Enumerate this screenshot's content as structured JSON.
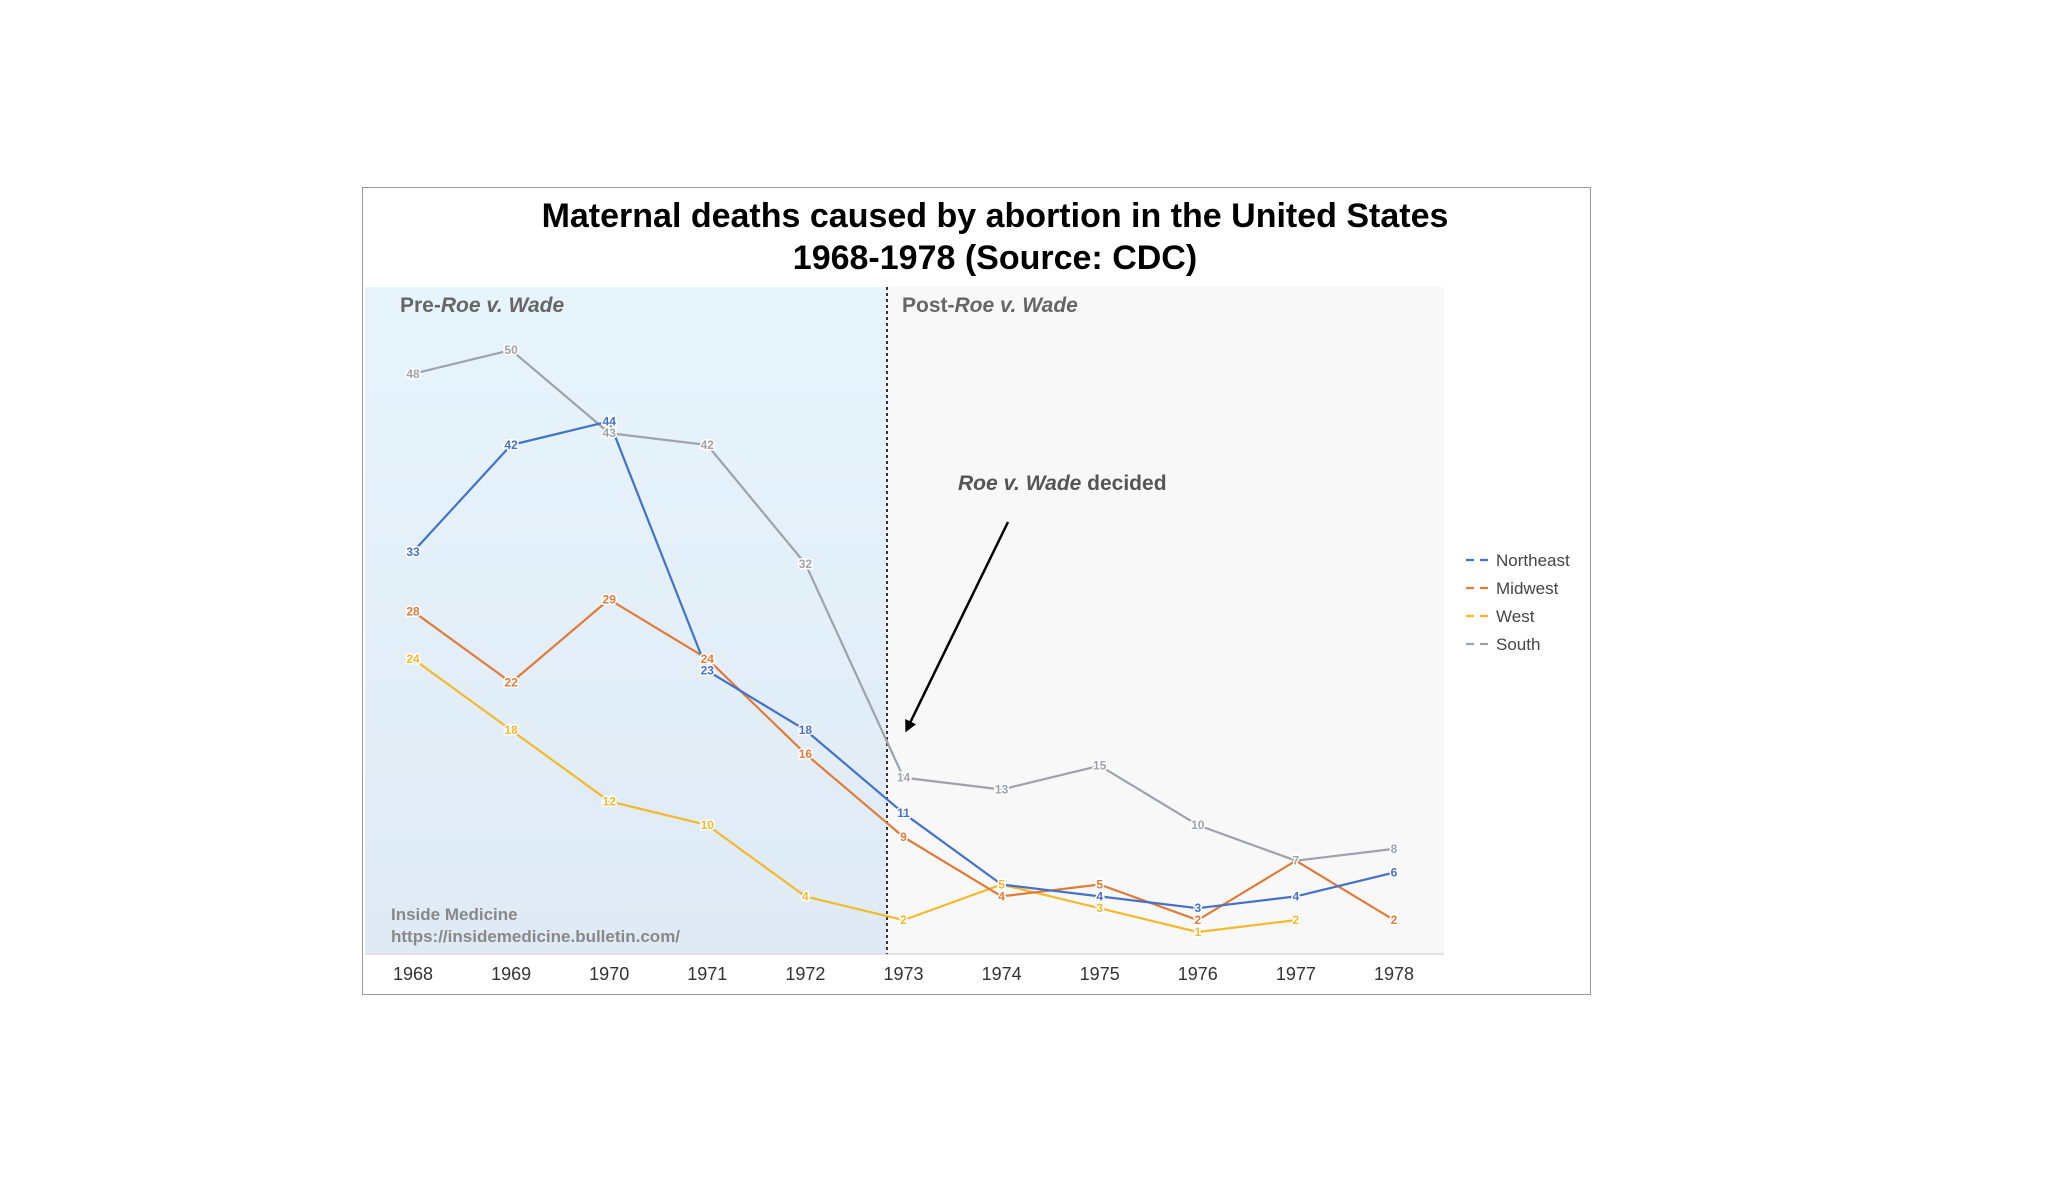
{
  "colors": {
    "northeast": "#4472C4",
    "midwest": "#E07B39",
    "west": "#F2B92E",
    "south": "#9EA3AB",
    "pre_panel_top": "#E8F4FC",
    "pre_panel_bottom": "#DFEAF4",
    "post_panel": "#F8F8F8",
    "divider": "#333333",
    "annotation_arrow": "#000000",
    "region_label": "#666666",
    "watermark": "#888888",
    "axis_text": "#333333"
  },
  "chart_data": {
    "type": "line",
    "title": "Maternal deaths caused by abortion in the United States",
    "subtitle": "1968-1978 (Source: CDC)",
    "xlabel": "",
    "ylabel": "",
    "categories": [
      "1968",
      "1969",
      "1970",
      "1971",
      "1972",
      "1973",
      "1974",
      "1975",
      "1976",
      "1977",
      "1978"
    ],
    "ylim": [
      0,
      55
    ],
    "grid": false,
    "legend_position": "right",
    "series": [
      {
        "key": "northeast",
        "name": "Northeast",
        "values": [
          33,
          42,
          44,
          23,
          18,
          11,
          5,
          4,
          3,
          4,
          6
        ]
      },
      {
        "key": "midwest",
        "name": "Midwest",
        "values": [
          28,
          22,
          29,
          24,
          16,
          9,
          4,
          5,
          2,
          7,
          2
        ]
      },
      {
        "key": "west",
        "name": "West",
        "values": [
          24,
          18,
          12,
          10,
          4,
          2,
          5,
          3,
          1,
          2,
          null
        ]
      },
      {
        "key": "south",
        "name": "South",
        "values": [
          48,
          50,
          43,
          42,
          32,
          14,
          13,
          15,
          10,
          7,
          8
        ]
      }
    ],
    "point_labels": {
      "northeast": [
        "33",
        "42",
        "44",
        "23",
        "18",
        "11",
        "",
        "4",
        "3",
        "4",
        "6"
      ],
      "midwest": [
        "28",
        "22",
        "29",
        "24",
        "16",
        "9",
        "4",
        "5",
        "2",
        "",
        "2"
      ],
      "west": [
        "24",
        "18",
        "12",
        "10",
        "4",
        "2",
        "5",
        "3",
        "1",
        "2",
        ""
      ],
      "south": [
        "48",
        "50",
        "43",
        "42",
        "32",
        "14",
        "13",
        "15",
        "10",
        "7",
        "8"
      ]
    },
    "annotations": {
      "pre_label_prefix": "Pre-",
      "pre_label_case": "Roe v. Wade",
      "post_label_prefix": "Post-",
      "post_label_case": "Roe v. Wade",
      "decided_case": "Roe v. Wade",
      "decided_suffix": " decided",
      "watermark_line1": "Inside Medicine",
      "watermark_line2": "https://insidemedicine.bulletin.com/"
    }
  }
}
